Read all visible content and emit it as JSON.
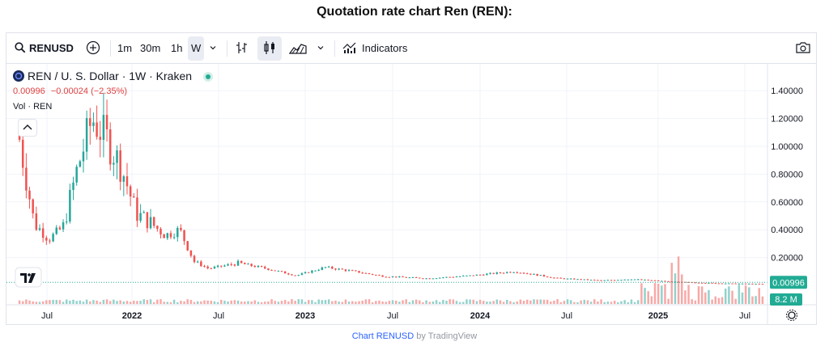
{
  "page": {
    "title": "Quotation rate chart Ren (REN):"
  },
  "toolbar": {
    "symbol": "RENUSD",
    "intervals": [
      "1m",
      "30m",
      "1h",
      "W"
    ],
    "active_interval": "W",
    "indicators_label": "Indicators"
  },
  "legend": {
    "symbol_text": "REN / U. S. Dollar · 1W · Kraken",
    "price": "0.00996",
    "change": "−0.00024 (−2.35%)",
    "volume_label": "Vol · REN"
  },
  "price_axis": {
    "ticks": [
      "1.40000",
      "1.20000",
      "1.00000",
      "0.80000",
      "0.60000",
      "0.40000",
      "0.20000"
    ],
    "current_price_label": "0.00996",
    "volume_label": "8.2 M"
  },
  "time_axis": {
    "labels": [
      "Jul",
      "2022",
      "Jul",
      "2023",
      "Jul",
      "2024",
      "Jul",
      "2025",
      "Jul"
    ]
  },
  "footer": {
    "link_text": "Chart RENUSD",
    "suffix": " by TradingView"
  },
  "colors": {
    "up": "#26a69a",
    "down": "#ef5350",
    "up_vol": "#92d2cc",
    "down_vol": "#f7a9a7",
    "current_line": "#22ab94"
  },
  "chart_data": {
    "type": "candlestick",
    "interval": "1W",
    "exchange": "Kraken",
    "pair": "REN / U. S. Dollar",
    "ylim": [
      0,
      1.45
    ],
    "y_ticks": [
      0.2,
      0.4,
      0.6,
      0.8,
      1.0,
      1.2,
      1.4
    ],
    "x_labels": [
      "Jul",
      "2022",
      "Jul",
      "2023",
      "Jul",
      "2024",
      "Jul",
      "2025",
      "Jul"
    ],
    "last_price": 0.00996,
    "change": -0.00024,
    "change_pct": -2.35,
    "last_volume": "8.2 M",
    "anchors": [
      {
        "date": "2021-05",
        "close": 1.05
      },
      {
        "date": "2021-06",
        "close": 0.45
      },
      {
        "date": "2021-07",
        "close": 0.33
      },
      {
        "date": "2021-08",
        "close": 0.42
      },
      {
        "date": "2021-09",
        "close": 0.85
      },
      {
        "date": "2021-10",
        "close": 1.2
      },
      {
        "date": "2021-11",
        "close": 1.05
      },
      {
        "date": "2021-12",
        "close": 0.85
      },
      {
        "date": "2022-01",
        "close": 0.52
      },
      {
        "date": "2022-02",
        "close": 0.45
      },
      {
        "date": "2022-03",
        "close": 0.36
      },
      {
        "date": "2022-04",
        "close": 0.4
      },
      {
        "date": "2022-05",
        "close": 0.17
      },
      {
        "date": "2022-06",
        "close": 0.12
      },
      {
        "date": "2022-08",
        "close": 0.16
      },
      {
        "date": "2022-10",
        "close": 0.12
      },
      {
        "date": "2022-12",
        "close": 0.07
      },
      {
        "date": "2023-02",
        "close": 0.13
      },
      {
        "date": "2023-04",
        "close": 0.1
      },
      {
        "date": "2023-06",
        "close": 0.065
      },
      {
        "date": "2023-09",
        "close": 0.05
      },
      {
        "date": "2023-12",
        "close": 0.07
      },
      {
        "date": "2024-03",
        "close": 0.1
      },
      {
        "date": "2024-06",
        "close": 0.05
      },
      {
        "date": "2024-09",
        "close": 0.035
      },
      {
        "date": "2024-11",
        "close": 0.045
      },
      {
        "date": "2025-02",
        "close": 0.025
      },
      {
        "date": "2025-05",
        "close": 0.015
      },
      {
        "date": "2025-08",
        "close": 0.00996
      }
    ]
  }
}
